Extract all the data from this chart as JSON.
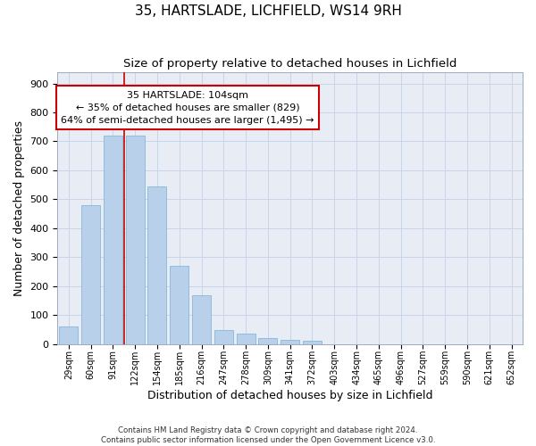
{
  "title1": "35, HARTSLADE, LICHFIELD, WS14 9RH",
  "title2": "Size of property relative to detached houses in Lichfield",
  "xlabel": "Distribution of detached houses by size in Lichfield",
  "ylabel": "Number of detached properties",
  "categories": [
    "29sqm",
    "60sqm",
    "91sqm",
    "122sqm",
    "154sqm",
    "185sqm",
    "216sqm",
    "247sqm",
    "278sqm",
    "309sqm",
    "341sqm",
    "372sqm",
    "403sqm",
    "434sqm",
    "465sqm",
    "496sqm",
    "527sqm",
    "559sqm",
    "590sqm",
    "621sqm",
    "652sqm"
  ],
  "values": [
    60,
    480,
    720,
    720,
    545,
    270,
    170,
    48,
    35,
    20,
    15,
    10,
    0,
    0,
    0,
    0,
    0,
    0,
    0,
    0,
    0
  ],
  "bar_color": "#b8d0ea",
  "bar_edge_color": "#7aafd4",
  "annotation_line1": "35 HARTSLADE: 104sqm",
  "annotation_line2": "← 35% of detached houses are smaller (829)",
  "annotation_line3": "64% of semi-detached houses are larger (1,495) →",
  "annotation_box_color": "#ffffff",
  "annotation_box_edge_color": "#cc0000",
  "ylim": [
    0,
    940
  ],
  "yticks": [
    0,
    100,
    200,
    300,
    400,
    500,
    600,
    700,
    800,
    900
  ],
  "footnote_line1": "Contains HM Land Registry data © Crown copyright and database right 2024.",
  "footnote_line2": "Contains public sector information licensed under the Open Government Licence v3.0.",
  "background_color": "#ffffff",
  "plot_bg_color": "#e8edf5",
  "grid_color": "#c8d4e8"
}
